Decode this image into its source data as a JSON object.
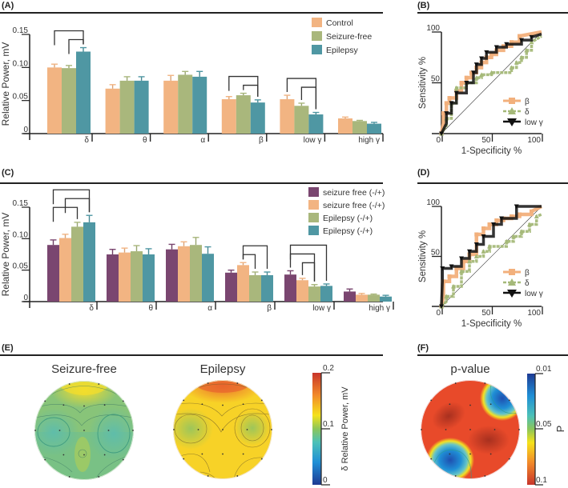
{
  "panels": {
    "A": {
      "label": "(A)"
    },
    "B": {
      "label": "(B)"
    },
    "C": {
      "label": "(C)"
    },
    "D": {
      "label": "(D)"
    },
    "E": {
      "label": "(E)"
    },
    "F": {
      "label": "(F)"
    }
  },
  "colors": {
    "control": "#f2b482",
    "seizure_free": "#a9b77c",
    "epilepsy": "#4f97a3",
    "purple": "#7a4670",
    "roc_beta": "#f2b07c",
    "roc_delta": "#a5b979",
    "roc_lowgamma": "#111111"
  },
  "chart_data": [
    {
      "id": "A",
      "type": "bar",
      "ylabel": "Relative Power, mV",
      "ylim": [
        0,
        0.15
      ],
      "yticks": [
        "0",
        "0.05",
        "0.10",
        "0.15"
      ],
      "categories": [
        "δ",
        "θ",
        "α",
        "β",
        "low γ",
        "high γ"
      ],
      "legend_position": "top-right",
      "series": [
        {
          "name": "Control",
          "color": "#f2b482",
          "values": [
            0.1,
            0.068,
            0.08,
            0.052,
            0.052,
            0.023
          ],
          "errors": [
            0.005,
            0.006,
            0.008,
            0.004,
            0.006,
            0.002
          ]
        },
        {
          "name": "Seizure-free",
          "color": "#a9b77c",
          "values": [
            0.099,
            0.08,
            0.089,
            0.058,
            0.042,
            0.019
          ],
          "errors": [
            0.004,
            0.006,
            0.005,
            0.003,
            0.004,
            0.001
          ]
        },
        {
          "name": "Epilepsy",
          "color": "#4f97a3",
          "values": [
            0.124,
            0.08,
            0.086,
            0.047,
            0.029,
            0.015
          ],
          "errors": [
            0.006,
            0.006,
            0.008,
            0.004,
            0.003,
            0.002
          ]
        }
      ],
      "brackets": [
        {
          "category": 0,
          "from": 0,
          "to": 2,
          "level": 2
        },
        {
          "category": 0,
          "from": 1,
          "to": 2,
          "level": 1
        },
        {
          "category": 3,
          "from": 0,
          "to": 2,
          "level": 2
        },
        {
          "category": 3,
          "from": 1,
          "to": 2,
          "level": 1
        },
        {
          "category": 4,
          "from": 0,
          "to": 2,
          "level": 2
        },
        {
          "category": 4,
          "from": 1,
          "to": 2,
          "level": 1
        }
      ]
    },
    {
      "id": "B",
      "type": "line",
      "title": "",
      "xlabel": "1-Specificity %",
      "ylabel": "Sensitivity %",
      "xlim": [
        0,
        100
      ],
      "ylim": [
        0,
        100
      ],
      "xticks": [
        "0",
        "50",
        "100"
      ],
      "yticks": [
        "50",
        "100"
      ],
      "legend_position": "bottom-right",
      "series": [
        {
          "name": "β",
          "marker": "square",
          "color": "#f2b07c",
          "x": [
            0,
            2,
            2,
            5,
            5,
            8,
            8,
            15,
            15,
            20,
            20,
            25,
            25,
            30,
            30,
            35,
            35,
            40,
            40,
            45,
            45,
            50,
            50,
            55,
            55,
            62,
            62,
            70,
            70,
            78,
            78,
            100
          ],
          "y": [
            0,
            10,
            20,
            20,
            30,
            30,
            35,
            35,
            42,
            42,
            50,
            50,
            55,
            55,
            60,
            60,
            65,
            65,
            70,
            70,
            75,
            75,
            78,
            78,
            82,
            82,
            86,
            86,
            90,
            90,
            96,
            100
          ]
        },
        {
          "name": "δ",
          "marker": "triangle-up",
          "color": "#a5b979",
          "x": [
            0,
            5,
            5,
            10,
            10,
            15,
            15,
            25,
            25,
            35,
            35,
            40,
            40,
            50,
            50,
            70,
            70,
            75,
            75,
            80,
            80,
            85,
            85,
            90,
            90,
            100
          ],
          "y": [
            0,
            8,
            15,
            15,
            30,
            30,
            45,
            45,
            50,
            50,
            55,
            55,
            58,
            58,
            60,
            60,
            65,
            65,
            70,
            70,
            75,
            75,
            82,
            82,
            90,
            96
          ]
        },
        {
          "name": "low γ",
          "marker": "triangle-down",
          "color": "#111111",
          "x": [
            0,
            5,
            5,
            10,
            10,
            15,
            15,
            25,
            25,
            32,
            32,
            35,
            35,
            40,
            40,
            45,
            45,
            55,
            55,
            65,
            65,
            80,
            80,
            90,
            90,
            100
          ],
          "y": [
            0,
            10,
            20,
            20,
            30,
            30,
            40,
            40,
            50,
            50,
            60,
            60,
            68,
            68,
            74,
            74,
            80,
            80,
            85,
            85,
            88,
            88,
            92,
            92,
            95,
            98
          ]
        }
      ]
    },
    {
      "id": "C",
      "type": "bar",
      "ylabel": "Relative Power, mV",
      "ylim": [
        0,
        0.15
      ],
      "yticks": [
        "0",
        "0.05",
        "0.10",
        "0.15"
      ],
      "categories": [
        "δ",
        "θ",
        "α",
        "β",
        "low γ",
        "high γ"
      ],
      "legend_position": "top-right",
      "series": [
        {
          "name": "seizure free (-/+)",
          "color": "#7a4670",
          "values": [
            0.09,
            0.075,
            0.083,
            0.046,
            0.043,
            0.016
          ],
          "errors": [
            0.008,
            0.008,
            0.008,
            0.004,
            0.006,
            0.004
          ]
        },
        {
          "name": "seizure free (-/+)",
          "color": "#f2b482",
          "values": [
            0.101,
            0.078,
            0.088,
            0.058,
            0.034,
            0.011
          ],
          "errors": [
            0.006,
            0.007,
            0.007,
            0.004,
            0.003,
            0.002
          ]
        },
        {
          "name": "Epilepsy (-/+)",
          "color": "#a9b77c",
          "values": [
            0.119,
            0.08,
            0.09,
            0.042,
            0.024,
            0.011
          ],
          "errors": [
            0.007,
            0.009,
            0.012,
            0.005,
            0.003,
            0.001
          ]
        },
        {
          "name": "Epilepsy (-/+)",
          "color": "#4f97a3",
          "values": [
            0.126,
            0.075,
            0.076,
            0.042,
            0.025,
            0.008
          ],
          "errors": [
            0.011,
            0.009,
            0.011,
            0.005,
            0.003,
            0.002
          ]
        }
      ],
      "brackets": [
        {
          "category": 0,
          "from": 0,
          "to": 3,
          "level": 3
        },
        {
          "category": 0,
          "from": 1,
          "to": 3,
          "level": 2
        },
        {
          "category": 0,
          "from": 0,
          "to": 2,
          "level": 1
        },
        {
          "category": 3,
          "from": 1,
          "to": 3,
          "level": 2
        },
        {
          "category": 3,
          "from": 1,
          "to": 2,
          "level": 1
        },
        {
          "category": 4,
          "from": 0,
          "to": 3,
          "level": 3
        },
        {
          "category": 4,
          "from": 0,
          "to": 2,
          "level": 2
        },
        {
          "category": 4,
          "from": 1,
          "to": 2,
          "level": 1
        }
      ]
    },
    {
      "id": "D",
      "type": "line",
      "xlabel": "1-Specificity %",
      "ylabel": "Sensitivity %",
      "xlim": [
        0,
        100
      ],
      "ylim": [
        0,
        100
      ],
      "xticks": [
        "0",
        "50",
        "100"
      ],
      "yticks": [
        "50",
        "100"
      ],
      "legend_position": "bottom-right",
      "series": [
        {
          "name": "β",
          "marker": "square",
          "color": "#f2b07c",
          "x": [
            0,
            2,
            2,
            8,
            8,
            15,
            15,
            22,
            22,
            28,
            28,
            35,
            35,
            42,
            42,
            48,
            48,
            55,
            55,
            62,
            62,
            70,
            70,
            78,
            78,
            90,
            90,
            100
          ],
          "y": [
            0,
            10,
            25,
            25,
            30,
            30,
            38,
            38,
            45,
            45,
            52,
            52,
            72,
            72,
            78,
            78,
            82,
            82,
            86,
            86,
            88,
            88,
            90,
            90,
            92,
            92,
            95,
            100
          ]
        },
        {
          "name": "δ",
          "marker": "triangle-up",
          "color": "#a5b979",
          "x": [
            0,
            5,
            5,
            12,
            12,
            20,
            20,
            28,
            28,
            35,
            35,
            42,
            42,
            48,
            48,
            65,
            65,
            72,
            72,
            80,
            80,
            88,
            88,
            95,
            95,
            100
          ],
          "y": [
            0,
            5,
            10,
            10,
            20,
            20,
            35,
            35,
            45,
            45,
            50,
            50,
            55,
            55,
            60,
            60,
            65,
            65,
            70,
            70,
            75,
            75,
            82,
            82,
            90,
            92
          ]
        },
        {
          "name": "low γ",
          "marker": "triangle-down",
          "color": "#111111",
          "x": [
            0,
            1,
            1,
            10,
            10,
            20,
            20,
            28,
            28,
            35,
            35,
            42,
            42,
            52,
            52,
            60,
            60,
            75,
            75,
            100
          ],
          "y": [
            0,
            25,
            38,
            38,
            40,
            40,
            48,
            48,
            55,
            55,
            62,
            62,
            70,
            70,
            82,
            82,
            88,
            88,
            100,
            100
          ]
        }
      ]
    },
    {
      "id": "E",
      "type": "heatmap",
      "subtype": "scalp-topography",
      "maps": [
        {
          "title": "Seizure-free",
          "mean_level": 0.09
        },
        {
          "title": "Epilepsy",
          "mean_level": 0.13
        }
      ],
      "colorbar": {
        "label": "δ Relative Power, mV",
        "ticks": [
          "0",
          "0.1",
          "0.2"
        ],
        "range": [
          0,
          0.2
        ],
        "colormap": "jet"
      }
    },
    {
      "id": "F",
      "type": "heatmap",
      "subtype": "scalp-topography",
      "maps": [
        {
          "title": "p-value"
        }
      ],
      "colorbar": {
        "label": "P",
        "ticks": [
          "0.01",
          "0.05",
          "0.1"
        ],
        "range": [
          0.01,
          0.1
        ],
        "colormap": "jet-reversed"
      }
    }
  ]
}
